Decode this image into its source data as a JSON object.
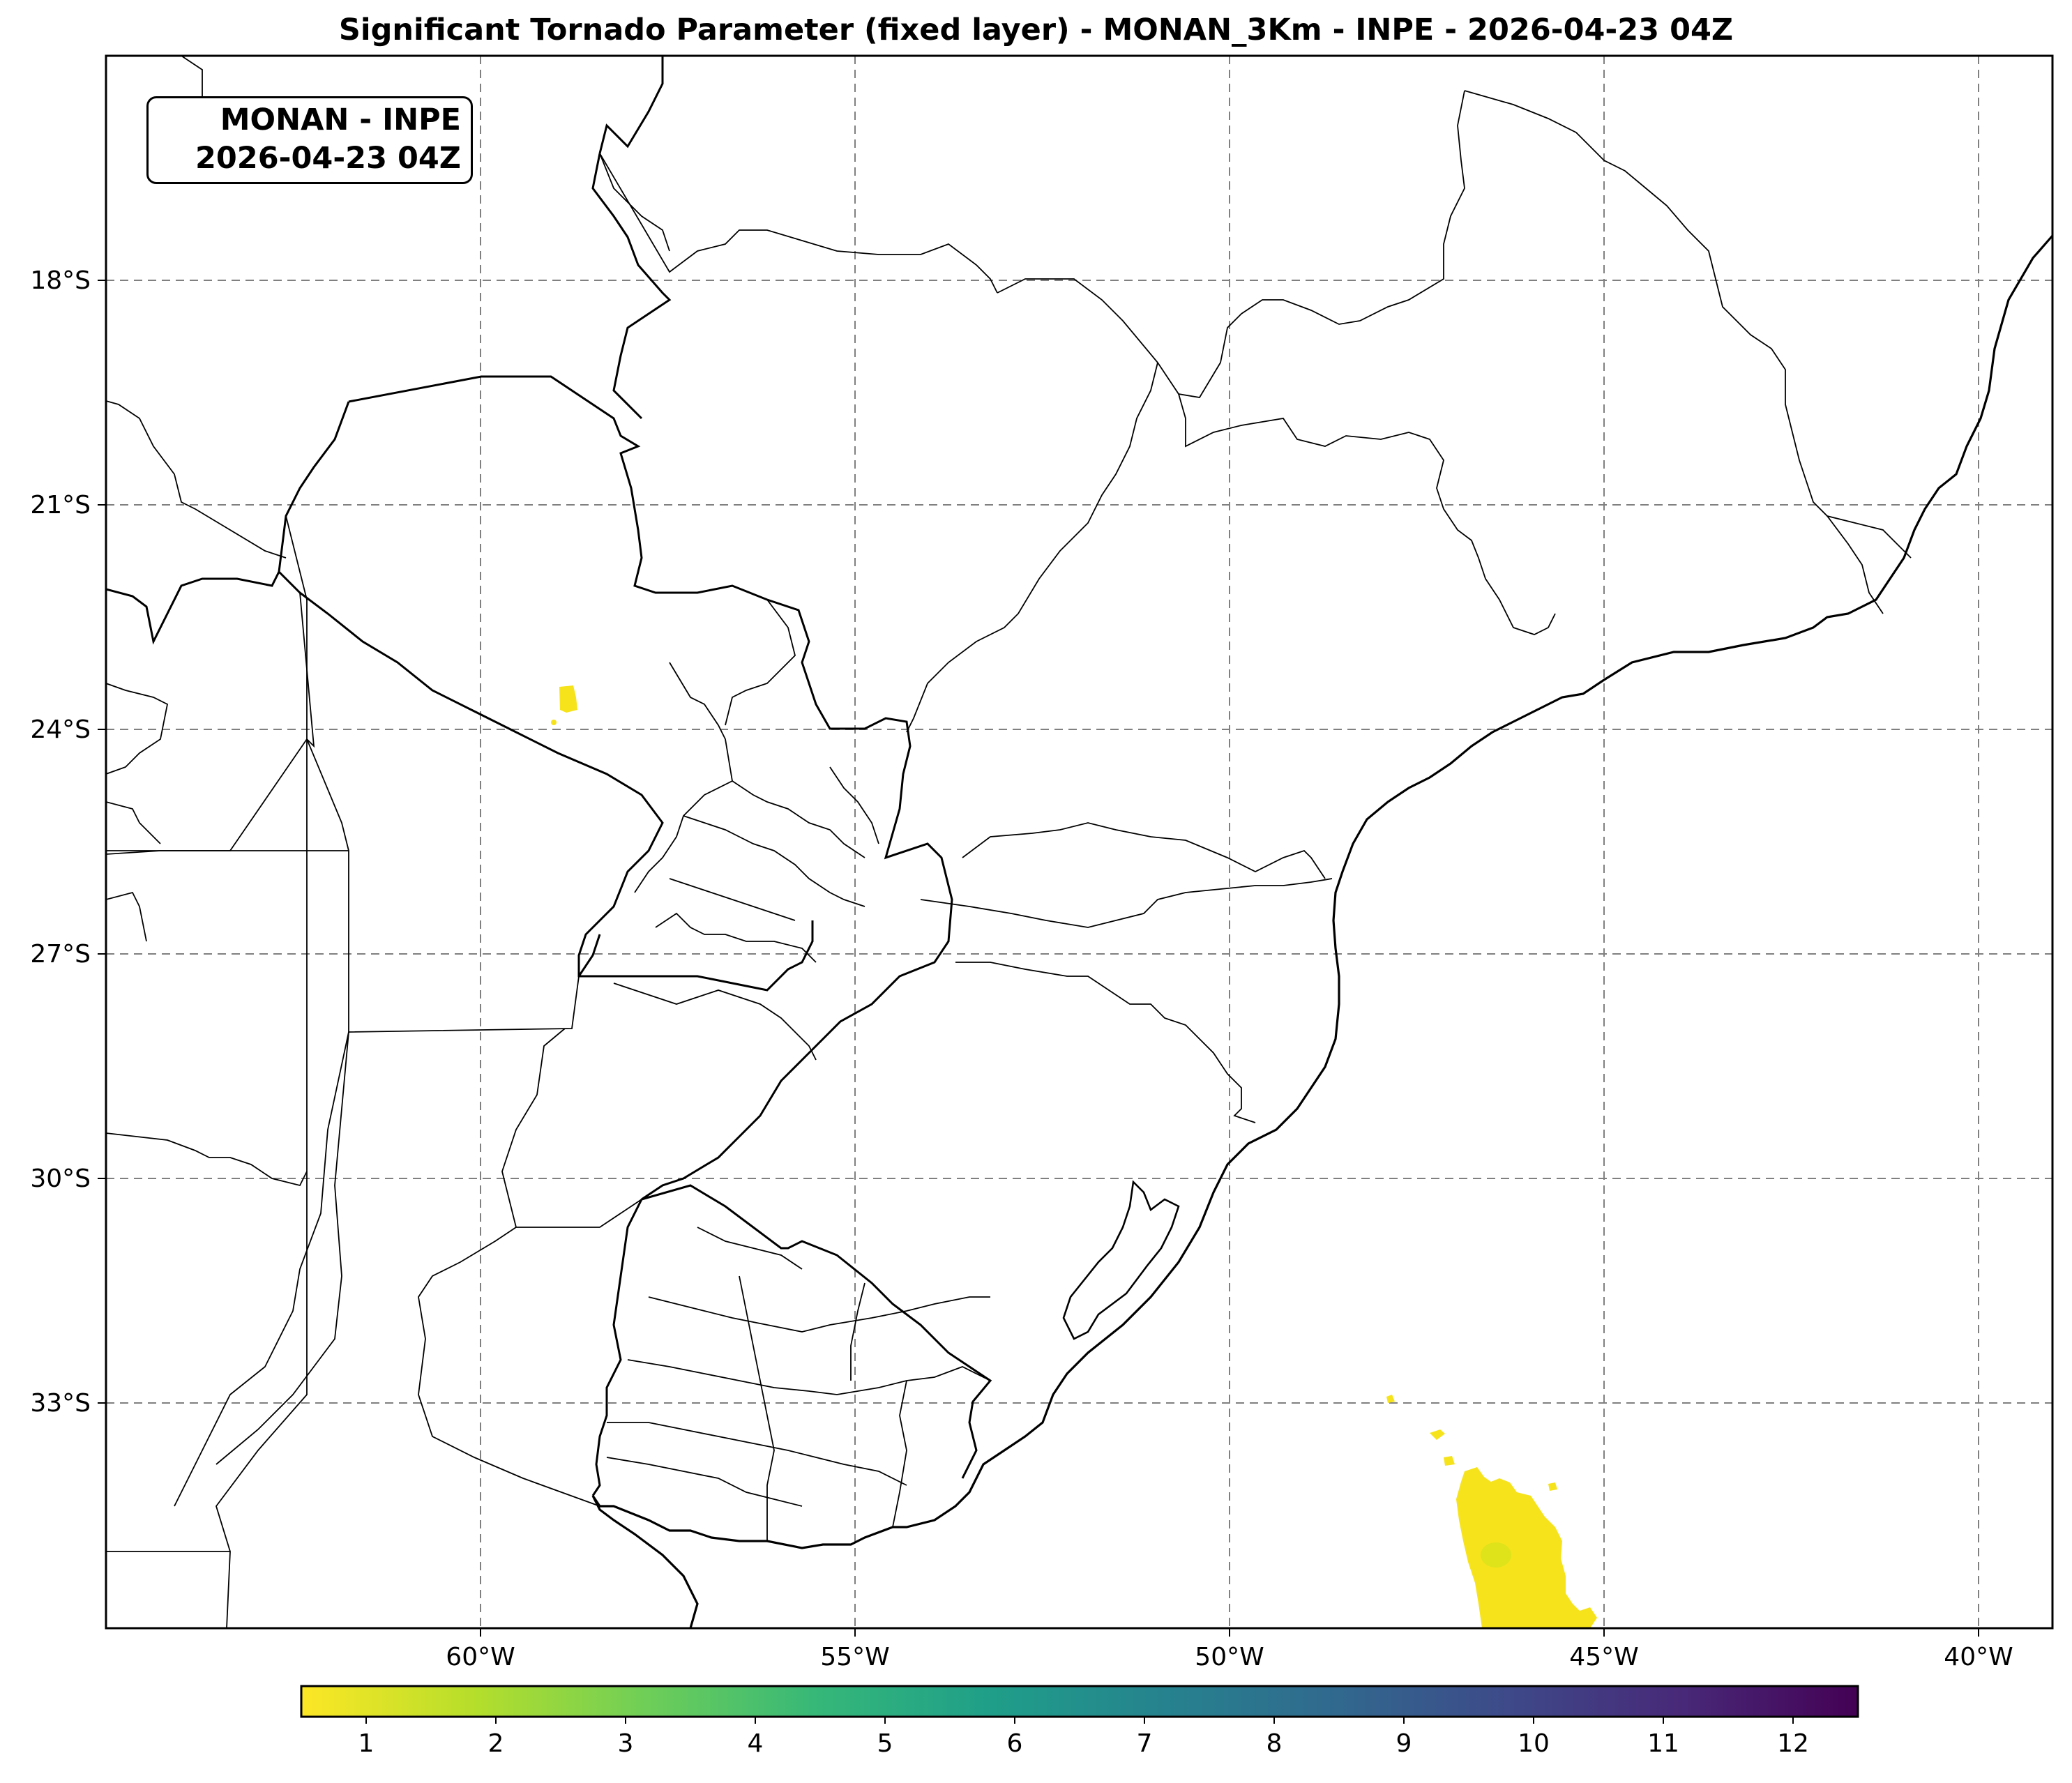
{
  "title": "Significant Tornado Parameter (fixed layer) - MONAN_3Km - INPE - 2026-04-23 04Z",
  "info_box": {
    "line1": "MONAN - INPE",
    "line2": "2026-04-23 04Z"
  },
  "map": {
    "lon_range": [
      -65.0,
      -39.0
    ],
    "lat_range": [
      -36.0,
      -15.0
    ],
    "lon_ticks": [
      {
        "value": -60,
        "label": "60°W"
      },
      {
        "value": -55,
        "label": "55°W"
      },
      {
        "value": -50,
        "label": "50°W"
      },
      {
        "value": -45,
        "label": "45°W"
      },
      {
        "value": -40,
        "label": "40°W"
      }
    ],
    "lat_ticks": [
      {
        "value": -18,
        "label": "18°S"
      },
      {
        "value": -21,
        "label": "21°S"
      },
      {
        "value": -24,
        "label": "24°S"
      },
      {
        "value": -27,
        "label": "27°S"
      },
      {
        "value": -30,
        "label": "30°S"
      },
      {
        "value": -33,
        "label": "33°S"
      }
    ],
    "gridlines": "dashed gray",
    "field_areas": [
      {
        "region": "northern Paraguay",
        "approx_lon": -58.9,
        "approx_lat": -23.6,
        "stp_value": 0.6
      },
      {
        "region": "South Atlantic offshore",
        "approx_lon": -46.2,
        "approx_lat": -34.7,
        "stp_value": 0.8
      }
    ]
  },
  "colorbar": {
    "colormap": "viridis_r",
    "range": [
      0.5,
      12.5
    ],
    "ticks": [
      "1",
      "2",
      "3",
      "4",
      "5",
      "6",
      "7",
      "8",
      "9",
      "10",
      "11",
      "12"
    ],
    "colors": [
      "#fde725",
      "#b5de2b",
      "#6ece58",
      "#35b779",
      "#1f9e89",
      "#26828e",
      "#31688e",
      "#3e4989",
      "#482878",
      "#440154"
    ]
  },
  "style": {
    "border_color": "#000000",
    "grid_color": "#808080",
    "field_color": "#f6e31c"
  }
}
